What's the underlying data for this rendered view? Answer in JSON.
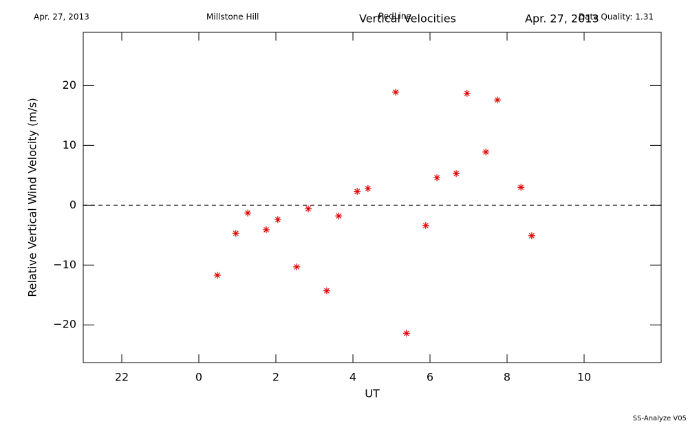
{
  "chart_data": {
    "type": "scatter",
    "header_left_date": "Apr. 27, 2013",
    "site": "Millstone Hill",
    "subtitle": "RedLine",
    "title": "Vertical Velocities",
    "header_right_date": "Apr. 27, 2013",
    "quality": "Data Quality: 1.31",
    "footer": "SS-Analyze V05",
    "xlabel": "UT",
    "ylabel": "Relative Vertical Wind Velocity (m/s)",
    "xlim": [
      -3,
      12
    ],
    "xticks": [
      {
        "value": -2,
        "label": "22"
      },
      0,
      2,
      4,
      6,
      8,
      10
    ],
    "ylim": [
      -26.3,
      28.9
    ],
    "yticks": [
      {
        "value": -20,
        "label": "−20"
      },
      {
        "value": -10,
        "label": "−10"
      },
      0,
      10,
      20
    ],
    "hline": 0,
    "color": "#e00000",
    "x": [
      0.48,
      0.96,
      1.27,
      1.75,
      2.05,
      2.54,
      2.84,
      3.32,
      3.63,
      4.11,
      4.39,
      5.11,
      5.39,
      5.89,
      6.18,
      6.68,
      6.96,
      7.45,
      7.75,
      8.36,
      8.64
    ],
    "values": [
      -11.7,
      -4.7,
      -1.3,
      -4.1,
      -2.4,
      -10.3,
      -0.6,
      -14.3,
      -1.8,
      2.3,
      2.8,
      18.9,
      -21.4,
      -3.4,
      4.6,
      5.3,
      18.7,
      8.9,
      17.6,
      3.0,
      -5.1
    ]
  }
}
